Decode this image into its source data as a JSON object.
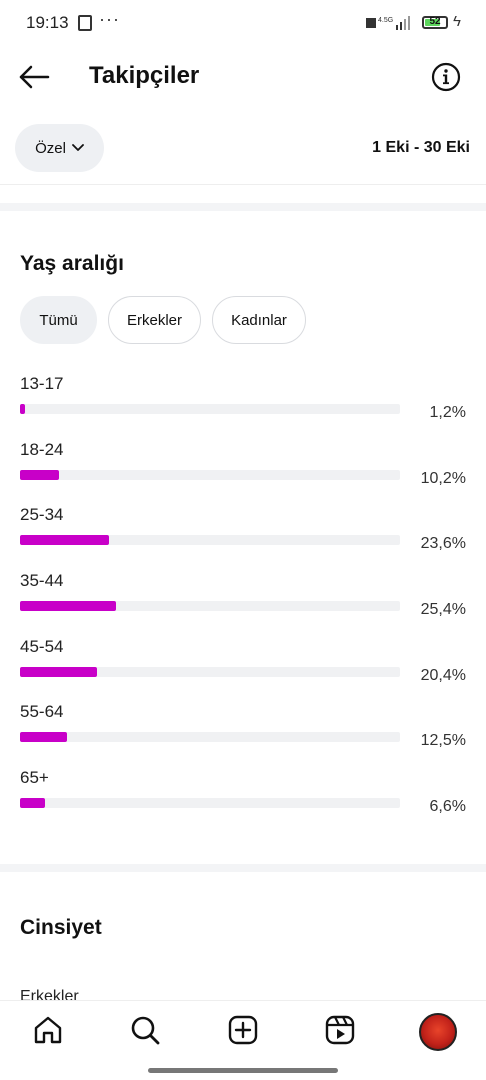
{
  "status_bar": {
    "time": "19:13",
    "battery": "52",
    "colors": {
      "battery_fill": "#5cd65c"
    }
  },
  "header": {
    "title": "Takipçiler",
    "back_icon": "arrow-left-icon",
    "info_icon": "info-circle-icon"
  },
  "filter": {
    "period_label": "Özel",
    "date_range": "1 Eki - 30 Eki"
  },
  "age_section": {
    "title": "Yaş aralığı",
    "tabs": [
      {
        "label": "Tümü",
        "selected": true
      },
      {
        "label": "Erkekler",
        "selected": false
      },
      {
        "label": "Kadınlar",
        "selected": false
      }
    ],
    "rows": [
      {
        "label": "13-17",
        "percent": "1,2%",
        "value": 1.2
      },
      {
        "label": "18-24",
        "percent": "10,2%",
        "value": 10.2
      },
      {
        "label": "25-34",
        "percent": "23,6%",
        "value": 23.6
      },
      {
        "label": "35-44",
        "percent": "25,4%",
        "value": 25.4
      },
      {
        "label": "45-54",
        "percent": "20,4%",
        "value": 20.4
      },
      {
        "label": "55-64",
        "percent": "12,5%",
        "value": 12.5
      },
      {
        "label": "65+",
        "percent": "6,6%",
        "value": 6.6
      }
    ],
    "bar_color": "#c800c8"
  },
  "gender_section": {
    "title": "Cinsiyet",
    "first_item": "Erkekler"
  },
  "bottom_nav": {
    "items": [
      "home-icon",
      "search-icon",
      "create-icon",
      "reels-icon",
      "profile-avatar"
    ]
  }
}
